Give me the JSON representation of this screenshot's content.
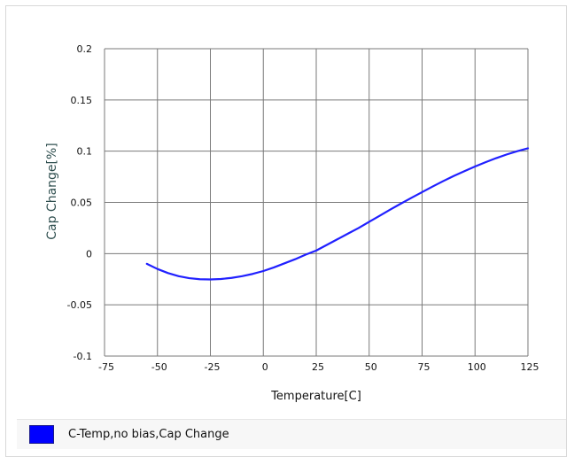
{
  "chart_data": {
    "type": "line",
    "xlabel": "Temperature[C]",
    "ylabel": "Cap Change[%]",
    "xlim": [
      -75,
      125
    ],
    "ylim": [
      -0.1,
      0.2
    ],
    "xticks": [
      -75,
      -50,
      -25,
      0,
      25,
      50,
      75,
      100,
      125
    ],
    "xtick_labels": [
      "-75",
      "-50",
      "-25",
      "0",
      "25",
      "50",
      "75",
      "100",
      "125"
    ],
    "yticks": [
      -0.1,
      -0.05,
      0,
      0.05,
      0.1,
      0.15,
      0.2
    ],
    "ytick_labels": [
      "-0.1",
      "-0.05",
      "0",
      "0.05",
      "0.1",
      "0.15",
      "0.2"
    ],
    "grid": true,
    "legend_position": "bottom",
    "series": [
      {
        "name": "C-Temp,no bias,Cap Change",
        "color": "#2020ff",
        "x": [
          -55,
          -50,
          -45,
          -40,
          -35,
          -30,
          -25,
          -20,
          -15,
          -10,
          -5,
          0,
          5,
          10,
          15,
          20,
          25,
          30,
          35,
          40,
          45,
          50,
          55,
          60,
          65,
          70,
          75,
          80,
          85,
          90,
          95,
          100,
          105,
          110,
          115,
          120,
          125
        ],
        "y": [
          -0.01,
          -0.015,
          -0.019,
          -0.022,
          -0.024,
          -0.025,
          -0.0252,
          -0.0248,
          -0.0237,
          -0.022,
          -0.0198,
          -0.017,
          -0.0135,
          -0.0095,
          -0.0055,
          -0.001,
          0.003,
          0.0085,
          0.014,
          0.0195,
          0.025,
          0.031,
          0.037,
          0.043,
          0.0488,
          0.0545,
          0.06,
          0.0655,
          0.0708,
          0.0758,
          0.0805,
          0.085,
          0.0892,
          0.0932,
          0.0968,
          0.1,
          0.1028
        ]
      }
    ]
  },
  "legend": {
    "label": "C-Temp,no bias,Cap Change",
    "swatch_color": "#0000ff"
  }
}
